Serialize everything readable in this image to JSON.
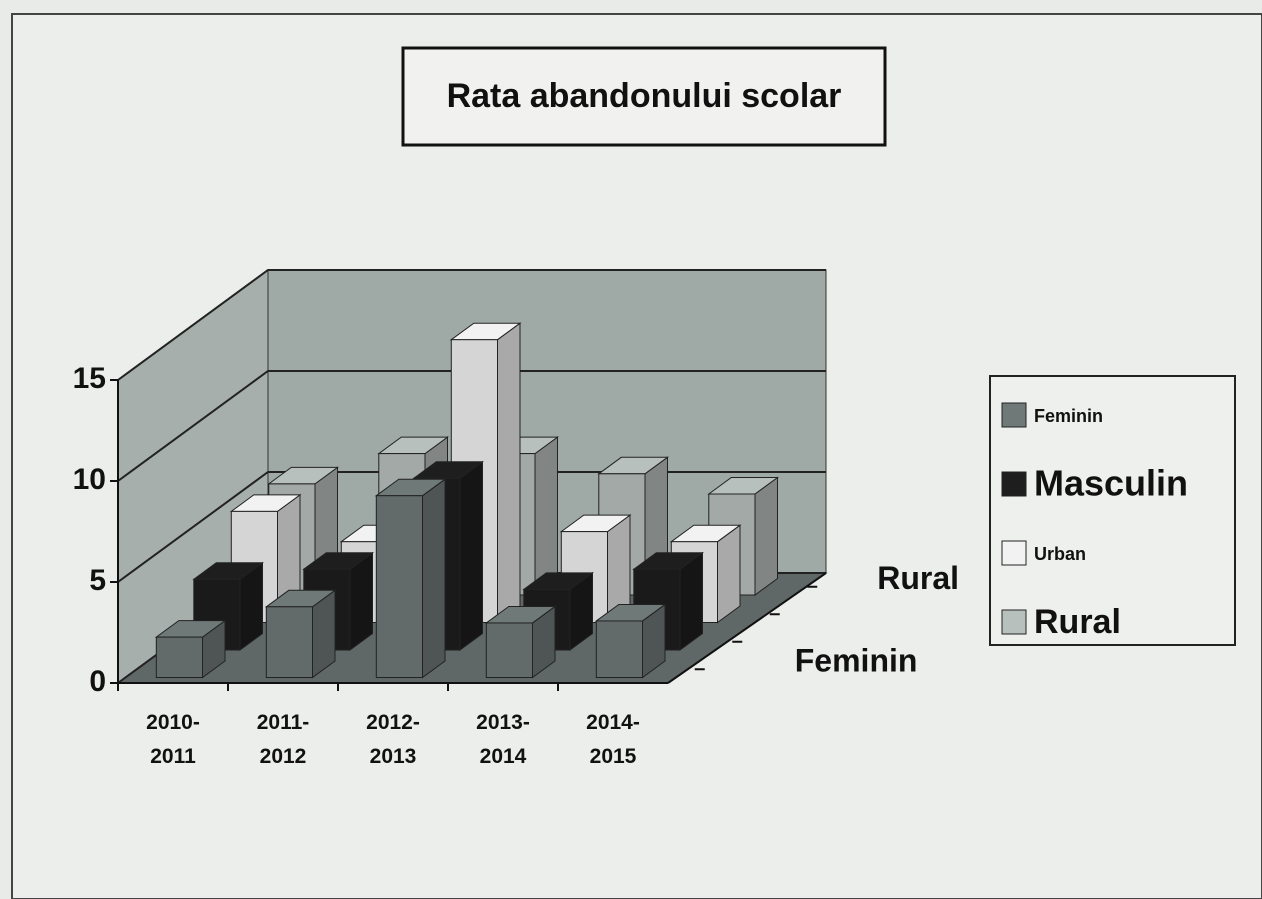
{
  "chart_data": {
    "type": "bar3d",
    "title": "Rata abandonului scolar",
    "categories": [
      "2010-2011",
      "2011-2012",
      "2012-2013",
      "2013-2014",
      "2014-2015"
    ],
    "series": [
      {
        "name": "Feminin",
        "color": "#6f7a78",
        "values": [
          2,
          3.5,
          9,
          2.7,
          2.8
        ]
      },
      {
        "name": "Masculin",
        "color": "#1e1e1e",
        "values": [
          3.5,
          4,
          8.5,
          3,
          4
        ]
      },
      {
        "name": "Urban",
        "color": "#f2f2f2",
        "values": [
          5.5,
          4,
          14,
          4.5,
          4
        ]
      },
      {
        "name": "Rural",
        "color": "#b8c0bd",
        "values": [
          5.5,
          7,
          7,
          6,
          5
        ]
      }
    ],
    "depth_labels": [
      "Feminin",
      null,
      null,
      "Rural"
    ],
    "ylim": [
      0,
      15
    ],
    "yticks": [
      0,
      5,
      10,
      15
    ],
    "grid": true,
    "legend": "right"
  }
}
